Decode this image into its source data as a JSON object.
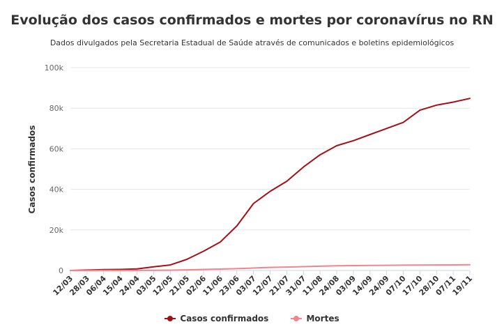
{
  "chart_data": {
    "type": "line",
    "title": "Evolução dos casos confirmados e mortes por coronavírus no RN",
    "subtitle": "Dados divulgados pela Secretaria Estadual de Saúde através de comunicados e boletins epidemiológicos",
    "ylabel": "Casos confirmados",
    "xlabel": "",
    "ylim": [
      0,
      100000
    ],
    "yticks": [
      0,
      20000,
      40000,
      60000,
      80000,
      100000
    ],
    "ytick_labels": [
      "0",
      "20k",
      "40k",
      "60k",
      "80k",
      "100k"
    ],
    "x_tick_labels": [
      "12/03",
      "28/03",
      "06/04",
      "15/04",
      "24/04",
      "03/05",
      "12/05",
      "21/05",
      "02/06",
      "11/06",
      "23/06",
      "03/07",
      "12/07",
      "21/07",
      "31/07",
      "11/08",
      "24/08",
      "03/09",
      "14/09",
      "24/09",
      "07/10",
      "17/10",
      "28/10",
      "07/11",
      "19/11"
    ],
    "grid": true,
    "legend_position": "bottom",
    "series": [
      {
        "name": "Casos confirmados",
        "color": "#a40f15",
        "values": [
          0,
          200,
          400,
          500,
          800,
          1800,
          2700,
          5500,
          9500,
          14000,
          22000,
          33000,
          39000,
          44000,
          51000,
          57000,
          61500,
          64000,
          67000,
          70000,
          73000,
          79000,
          81500,
          83000,
          84800
        ]
      },
      {
        "name": "Mortes",
        "color": "#f4848a",
        "values": [
          0,
          10,
          20,
          30,
          50,
          80,
          150,
          300,
          500,
          700,
          900,
          1200,
          1500,
          1700,
          1900,
          2100,
          2300,
          2400,
          2500,
          2550,
          2600,
          2650,
          2700,
          2750,
          2850
        ]
      }
    ]
  }
}
